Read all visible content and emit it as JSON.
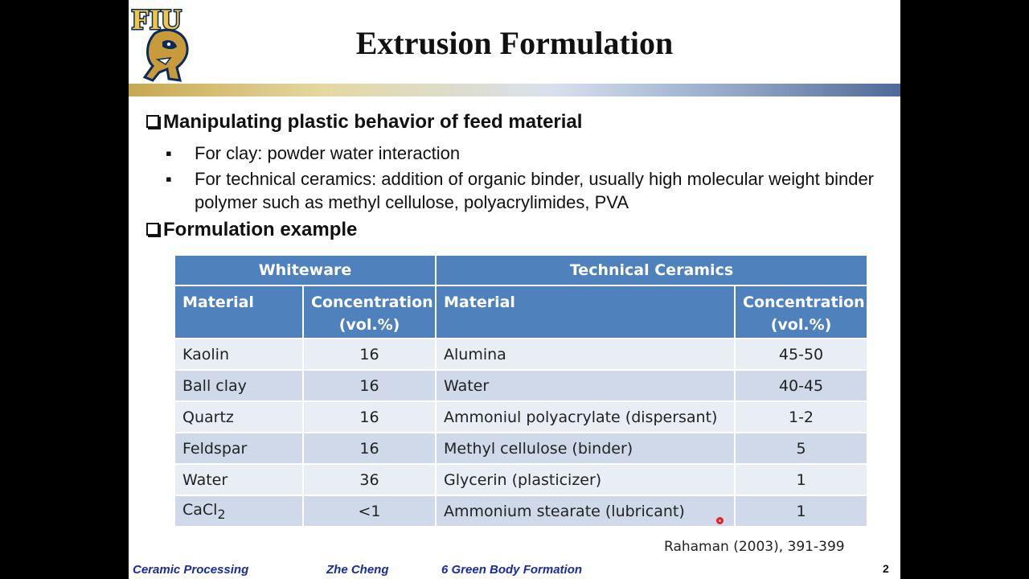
{
  "slide": {
    "title": "Extrusion Formulation",
    "logo_text": "FIU"
  },
  "sections": [
    {
      "heading": "Manipulating plastic behavior of feed material",
      "bullets": [
        "For clay: powder water interaction",
        "For technical ceramics: addition of organic binder, usually high molecular weight binder polymer such as methyl cellulose, polyacrylimides, PVA"
      ]
    },
    {
      "heading": "Formulation example"
    }
  ],
  "table": {
    "groups": [
      "Whiteware",
      "Technical Ceramics"
    ],
    "columns": [
      "Material",
      "Concentration (vol.%)",
      "Material",
      "Concentration (vol.%)"
    ],
    "rows": [
      {
        "w_material": "Kaolin",
        "w_conc": "16",
        "t_material": "Alumina",
        "t_conc": "45-50"
      },
      {
        "w_material": "Ball clay",
        "w_conc": "16",
        "t_material": "Water",
        "t_conc": "40-45"
      },
      {
        "w_material": "Quartz",
        "w_conc": "16",
        "t_material": "Ammoniul polyacrylate (dispersant)",
        "t_conc": "1-2"
      },
      {
        "w_material": "Feldspar",
        "w_conc": "16",
        "t_material": "Methyl cellulose (binder)",
        "t_conc": "5"
      },
      {
        "w_material": "Water",
        "w_conc": "36",
        "t_material": "Glycerin (plasticizer)",
        "t_conc": "1"
      },
      {
        "w_material": "CaCl",
        "w_material_sub": "2",
        "w_conc": "<1",
        "t_material": "Ammonium stearate (lubricant)",
        "t_conc": "1"
      }
    ]
  },
  "citation": "Rahaman (2003), 391-399",
  "footer": {
    "course": "Ceramic Processing",
    "author": "Zhe Cheng",
    "chapter": "6  Green Body Formation",
    "page": "2"
  },
  "colors": {
    "table_header": "#4f81bd",
    "row_light": "#e9edf4",
    "row_dark": "#cfd9ea",
    "footer_text": "#1a2aa0",
    "laser_pointer": "#e8202a"
  }
}
